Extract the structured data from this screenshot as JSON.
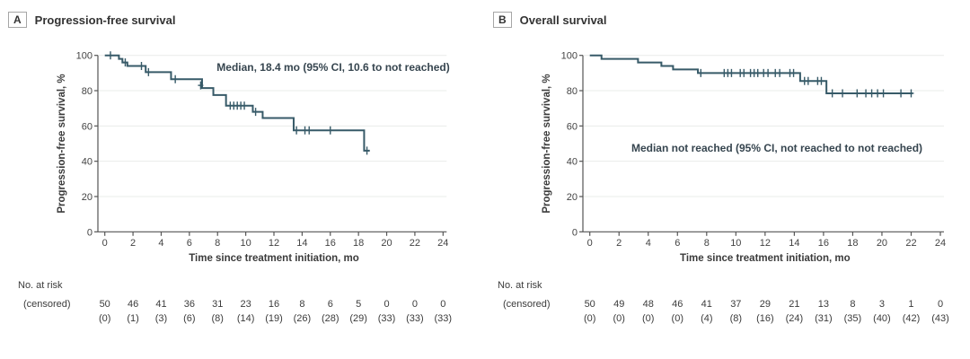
{
  "colors": {
    "curve": "#375a68",
    "axis": "#555555",
    "grid": "#e9ece9",
    "text": "#3b3b3b",
    "tick_text": "#434343"
  },
  "chart_data": [
    {
      "type": "line",
      "subtype": "kaplan-meier-step",
      "panel_letter": "A",
      "title": "Progression-free survival",
      "annotation": "Median, 18.4 mo (95% CI, 10.6 to not reached)",
      "xlabel": "Time since treatment initiation, mo",
      "ylabel": "Progression-free survival, %",
      "xlim": [
        0,
        24
      ],
      "ylim": [
        0,
        100
      ],
      "xticks": [
        0,
        2,
        4,
        6,
        8,
        10,
        12,
        14,
        16,
        18,
        20,
        22,
        24
      ],
      "yticks": [
        0,
        20,
        40,
        60,
        80,
        100
      ],
      "grid": "horizontal",
      "legend": "none",
      "steps": [
        [
          0,
          100
        ],
        [
          1.0,
          98
        ],
        [
          1.25,
          96
        ],
        [
          1.6,
          94
        ],
        [
          2.9,
          90.5
        ],
        [
          4.7,
          86.5
        ],
        [
          6.9,
          81.5
        ],
        [
          7.7,
          77.5
        ],
        [
          8.6,
          71.5
        ],
        [
          10.5,
          68
        ],
        [
          11.2,
          64.5
        ],
        [
          13.4,
          57.5
        ],
        [
          18.4,
          46
        ]
      ],
      "end_time": 18.8,
      "censors": [
        [
          0.4,
          100
        ],
        [
          1.45,
          96
        ],
        [
          2.6,
          94
        ],
        [
          3.1,
          90.5
        ],
        [
          5.0,
          86.5
        ],
        [
          6.8,
          83
        ],
        [
          8.9,
          71.5
        ],
        [
          9.15,
          71.5
        ],
        [
          9.4,
          71.5
        ],
        [
          9.65,
          71.5
        ],
        [
          9.9,
          71.5
        ],
        [
          10.7,
          68
        ],
        [
          13.6,
          57.5
        ],
        [
          14.2,
          57.5
        ],
        [
          14.5,
          57.5
        ],
        [
          16.0,
          57.5
        ],
        [
          18.6,
          46
        ]
      ],
      "at_risk": {
        "label": "No. at risk",
        "sublabel": "(censored)",
        "times": [
          0,
          2,
          4,
          6,
          8,
          10,
          12,
          14,
          16,
          18,
          20,
          22,
          24
        ],
        "n": [
          "50",
          "46",
          "41",
          "36",
          "31",
          "23",
          "16",
          "8",
          "6",
          "5",
          "0",
          "0",
          "0"
        ],
        "censored": [
          "(0)",
          "(1)",
          "(3)",
          "(6)",
          "(8)",
          "(14)",
          "(19)",
          "(26)",
          "(28)",
          "(29)",
          "(33)",
          "(33)",
          "(33)"
        ]
      }
    },
    {
      "type": "line",
      "subtype": "kaplan-meier-step",
      "panel_letter": "B",
      "title": "Overall survival",
      "annotation": "Median not reached (95% CI, not reached to not reached)",
      "xlabel": "Time since treatment initiation, mo",
      "ylabel": "Progression-free survival, %",
      "xlim": [
        0,
        24
      ],
      "ylim": [
        0,
        100
      ],
      "xticks": [
        0,
        2,
        4,
        6,
        8,
        10,
        12,
        14,
        16,
        18,
        20,
        22,
        24
      ],
      "yticks": [
        0,
        20,
        40,
        60,
        80,
        100
      ],
      "grid": "horizontal",
      "legend": "none",
      "steps": [
        [
          0,
          100
        ],
        [
          0.8,
          98
        ],
        [
          3.3,
          96
        ],
        [
          4.9,
          94
        ],
        [
          5.7,
          92
        ],
        [
          7.4,
          90
        ],
        [
          14.4,
          85.5
        ],
        [
          16.2,
          78.5
        ]
      ],
      "end_time": 22.1,
      "censors": [
        [
          7.6,
          90
        ],
        [
          9.2,
          90
        ],
        [
          9.45,
          90
        ],
        [
          9.7,
          90
        ],
        [
          10.3,
          90
        ],
        [
          10.55,
          90
        ],
        [
          11.0,
          90
        ],
        [
          11.25,
          90
        ],
        [
          11.5,
          90
        ],
        [
          11.9,
          90
        ],
        [
          12.2,
          90
        ],
        [
          12.7,
          90
        ],
        [
          13.0,
          90
        ],
        [
          13.7,
          90
        ],
        [
          13.95,
          90
        ],
        [
          14.7,
          85.5
        ],
        [
          14.95,
          85.5
        ],
        [
          15.6,
          85.5
        ],
        [
          15.85,
          85.5
        ],
        [
          16.6,
          78.5
        ],
        [
          17.3,
          78.5
        ],
        [
          18.3,
          78.5
        ],
        [
          18.9,
          78.5
        ],
        [
          19.3,
          78.5
        ],
        [
          19.7,
          78.5
        ],
        [
          20.1,
          78.5
        ],
        [
          21.3,
          78.5
        ],
        [
          22.0,
          78.5
        ]
      ],
      "at_risk": {
        "label": "No. at risk",
        "sublabel": "(censored)",
        "times": [
          0,
          2,
          4,
          6,
          8,
          10,
          12,
          14,
          16,
          18,
          20,
          22,
          24
        ],
        "n": [
          "50",
          "49",
          "48",
          "46",
          "41",
          "37",
          "29",
          "21",
          "13",
          "8",
          "3",
          "1",
          "0"
        ],
        "censored": [
          "(0)",
          "(0)",
          "(0)",
          "(0)",
          "(4)",
          "(8)",
          "(16)",
          "(24)",
          "(31)",
          "(35)",
          "(40)",
          "(42)",
          "(43)"
        ]
      }
    }
  ]
}
